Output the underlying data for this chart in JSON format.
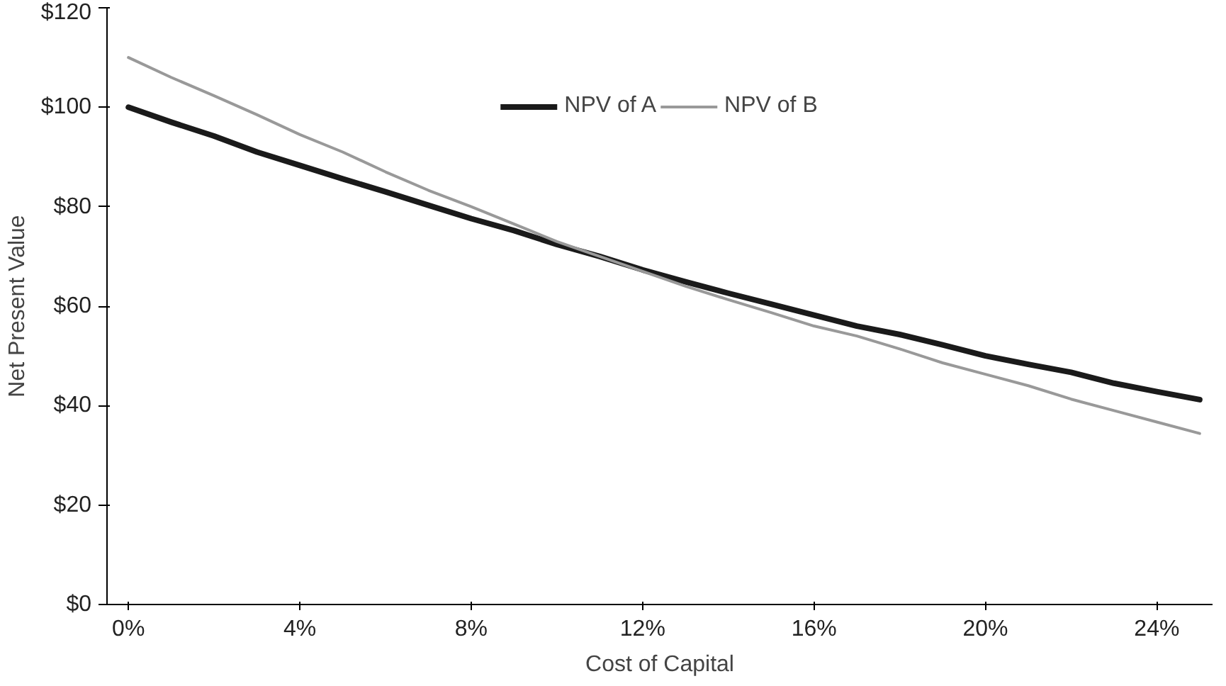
{
  "chart_data": {
    "type": "line",
    "xlabel": "Cost of Capital",
    "ylabel": "Net Present Value",
    "x": [
      0,
      1,
      2,
      3,
      4,
      5,
      6,
      7,
      8,
      9,
      10,
      11,
      12,
      13,
      14,
      15,
      16,
      17,
      18,
      19,
      20,
      21,
      22,
      23,
      24,
      25
    ],
    "series": [
      {
        "name": "NPV of A",
        "color": "#1a1a1a",
        "values": [
          100,
          97,
          94.2,
          91,
          88.3,
          85.6,
          83,
          80.3,
          77.6,
          75.2,
          72.4,
          70,
          67.3,
          64.9,
          62.6,
          60.4,
          58.2,
          56,
          54.3,
          52.2,
          50,
          48.3,
          46.7,
          44.5,
          42.8,
          41.2
        ]
      },
      {
        "name": "NPV of B",
        "color": "#999999",
        "values": [
          110,
          106,
          102.3,
          98.5,
          94.5,
          91,
          87,
          83.3,
          80,
          76.5,
          73,
          70,
          67,
          64,
          61.3,
          58.7,
          56,
          54,
          51.4,
          48.6,
          46.3,
          44,
          41.3,
          39,
          36.7,
          34.4
        ]
      }
    ],
    "xlim": [
      -0.5,
      25.3
    ],
    "ylim": [
      0,
      120
    ],
    "xticks": [
      {
        "value": 0,
        "label": "0%"
      },
      {
        "value": 4,
        "label": "4%"
      },
      {
        "value": 8,
        "label": "8%"
      },
      {
        "value": 12,
        "label": "12%"
      },
      {
        "value": 16,
        "label": "16%"
      },
      {
        "value": 20,
        "label": "20%"
      },
      {
        "value": 24,
        "label": "24%"
      }
    ],
    "yticks": [
      {
        "value": 0,
        "label": "$0"
      },
      {
        "value": 20,
        "label": "$20"
      },
      {
        "value": 40,
        "label": "$40"
      },
      {
        "value": 60,
        "label": "$60"
      },
      {
        "value": 80,
        "label": "$80"
      },
      {
        "value": 100,
        "label": "$100"
      },
      {
        "value": 120,
        "label": "$120"
      }
    ],
    "grid": false,
    "legend": "top",
    "line_style": "solid",
    "marker": "none"
  }
}
